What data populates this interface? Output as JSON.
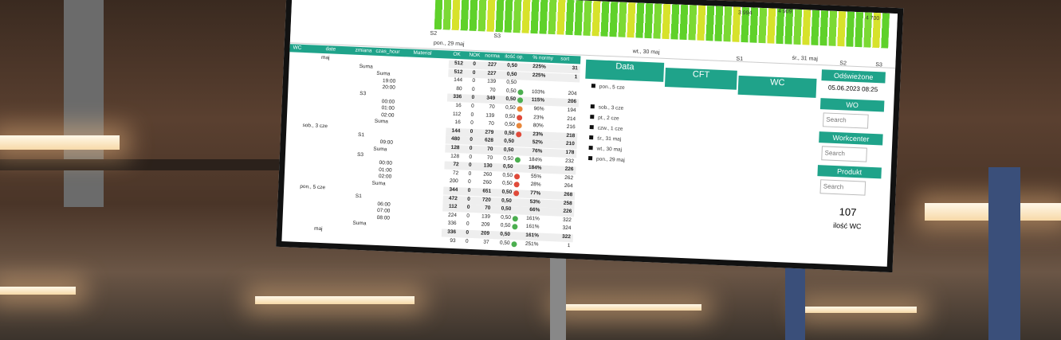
{
  "top_chart": {
    "labels": [
      "S2",
      "S3",
      "S1",
      "S2",
      "S3",
      "pon., 29 maj",
      "wt., 30 maj",
      "śr., 31 maj",
      "3 994",
      "4 909",
      "4 700"
    ]
  },
  "table": {
    "columns": [
      "WC",
      "date",
      "zmiana",
      "czas_hour",
      "Material",
      "OK",
      "NOK",
      "norma",
      "ilość op.",
      "% normy",
      "sort"
    ],
    "tree": [
      "maj",
      "Suma",
      "Suma",
      "19:00",
      "20:00",
      "S3",
      "00:00",
      "01:00",
      "02:00",
      "Suma",
      "sob., 3 cze",
      "S1",
      "09:00",
      "Suma",
      "S3",
      "00:00",
      "01:00",
      "02:00",
      "Suma",
      "pon., 5 cze",
      "S1",
      "06:00",
      "07:00",
      "08:00",
      "Suma",
      "maj"
    ],
    "rows": [
      {
        "cells": [
          "512",
          "0",
          "227",
          "0,50",
          "225%",
          "31"
        ],
        "dot": null,
        "bold": true
      },
      {
        "cells": [
          "512",
          "0",
          "227",
          "0,50",
          "225%",
          "1"
        ],
        "dot": null,
        "bold": true
      },
      {
        "cells": [
          "144",
          "0",
          "139",
          "0,50",
          "",
          ""
        ],
        "dot": null,
        "bold": false
      },
      {
        "cells": [
          "80",
          "0",
          "70",
          "0,50",
          "103%",
          "204"
        ],
        "dot": "#4caf50",
        "bold": false
      },
      {
        "cells": [
          "336",
          "0",
          "349",
          "0,50",
          "115%",
          "206"
        ],
        "dot": "#4caf50",
        "bold": true
      },
      {
        "cells": [
          "16",
          "0",
          "70",
          "0,50",
          "96%",
          "194"
        ],
        "dot": "#e8873a",
        "bold": false
      },
      {
        "cells": [
          "112",
          "0",
          "139",
          "0,50",
          "23%",
          "214"
        ],
        "dot": "#e04a3a",
        "bold": false
      },
      {
        "cells": [
          "16",
          "0",
          "70",
          "0,50",
          "80%",
          "216"
        ],
        "dot": "#e8873a",
        "bold": false
      },
      {
        "cells": [
          "144",
          "0",
          "279",
          "0,50",
          "23%",
          "218"
        ],
        "dot": "#e04a3a",
        "bold": true
      },
      {
        "cells": [
          "480",
          "0",
          "628",
          "0,50",
          "52%",
          "210"
        ],
        "dot": null,
        "bold": true
      },
      {
        "cells": [
          "128",
          "0",
          "70",
          "0,50",
          "76%",
          "178"
        ],
        "dot": null,
        "bold": true
      },
      {
        "cells": [
          "128",
          "0",
          "70",
          "0,50",
          "184%",
          "232"
        ],
        "dot": "#4caf50",
        "bold": false
      },
      {
        "cells": [
          "72",
          "0",
          "130",
          "0,50",
          "184%",
          "226"
        ],
        "dot": null,
        "bold": true
      },
      {
        "cells": [
          "72",
          "0",
          "260",
          "0,50",
          "55%",
          "262"
        ],
        "dot": "#e04a3a",
        "bold": false
      },
      {
        "cells": [
          "200",
          "0",
          "260",
          "0,50",
          "28%",
          "264"
        ],
        "dot": "#e04a3a",
        "bold": false
      },
      {
        "cells": [
          "344",
          "0",
          "651",
          "0,50",
          "77%",
          "268"
        ],
        "dot": "#e04a3a",
        "bold": true
      },
      {
        "cells": [
          "472",
          "0",
          "720",
          "0,50",
          "53%",
          "258"
        ],
        "dot": null,
        "bold": true
      },
      {
        "cells": [
          "112",
          "0",
          "70",
          "0,50",
          "66%",
          "226"
        ],
        "dot": null,
        "bold": true
      },
      {
        "cells": [
          "224",
          "0",
          "139",
          "0,50",
          "161%",
          "322"
        ],
        "dot": "#4caf50",
        "bold": false
      },
      {
        "cells": [
          "336",
          "0",
          "209",
          "0,50",
          "161%",
          "324"
        ],
        "dot": "#4caf50",
        "bold": false
      },
      {
        "cells": [
          "336",
          "0",
          "209",
          "0,50",
          "161%",
          "322"
        ],
        "dot": null,
        "bold": true
      },
      {
        "cells": [
          "93",
          "0",
          "37",
          "0,50",
          "251%",
          "1"
        ],
        "dot": "#4caf50",
        "bold": false
      }
    ]
  },
  "filter": {
    "tabs": [
      "Data",
      "CFT",
      "WC"
    ],
    "dates": [
      "pon., 5 cze",
      "sob., 3 cze",
      "pt., 2 cze",
      "czw., 1 cze",
      "śr., 31 maj",
      "wt., 30 maj",
      "pon., 29 maj"
    ]
  },
  "slicers": {
    "refreshed_title": "Odświeżone",
    "refreshed_value": "05.06.2023 08:25",
    "wo": "WO",
    "workcenter": "Workcenter",
    "produkt": "Produkt",
    "search": "Search",
    "kpi_value": "107",
    "kpi_label": "ilość WC"
  }
}
